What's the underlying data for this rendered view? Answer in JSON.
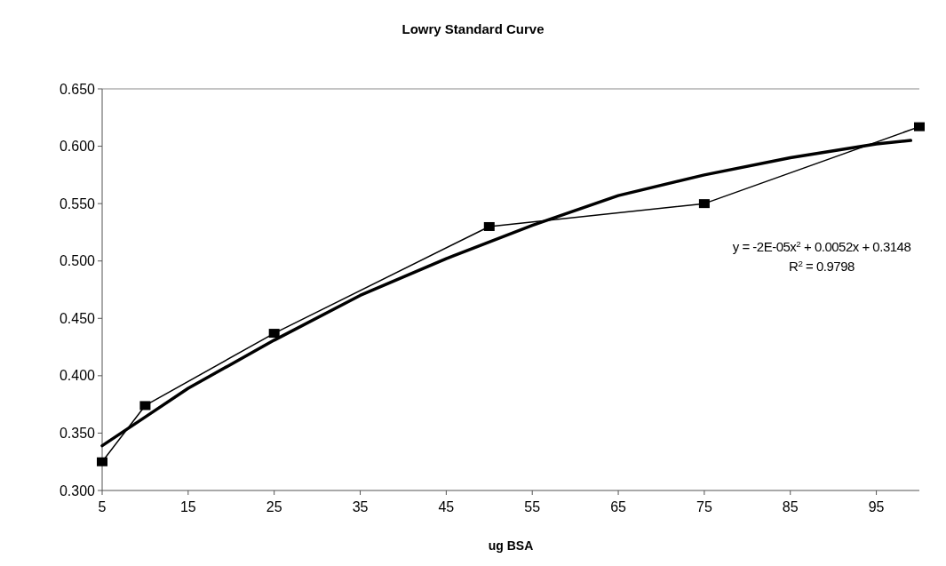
{
  "chart_data": {
    "type": "line",
    "title": "Lowry Standard Curve",
    "xlabel": "ug BSA",
    "xlim": [
      5,
      100
    ],
    "xticks": [
      5,
      15,
      25,
      35,
      45,
      55,
      65,
      75,
      85,
      95
    ],
    "ylim": [
      0.3,
      0.65
    ],
    "yticks": [
      {
        "value": 0.3,
        "label": "0.300"
      },
      {
        "value": 0.35,
        "label": "0.350"
      },
      {
        "value": 0.4,
        "label": "0.400"
      },
      {
        "value": 0.45,
        "label": "0.450"
      },
      {
        "value": 0.5,
        "label": "0.500"
      },
      {
        "value": 0.55,
        "label": "0.550"
      },
      {
        "value": 0.6,
        "label": "0.600"
      },
      {
        "value": 0.65,
        "label": "0.650"
      }
    ],
    "grid": false,
    "series": [
      {
        "color": "#000000",
        "marker": "square",
        "x": [
          5,
          10,
          25,
          50,
          75,
          100
        ],
        "values": [
          0.325,
          0.374,
          0.437,
          0.53,
          0.55,
          0.617
        ]
      },
      {
        "color": "#000000",
        "marker": "none",
        "x": [
          5,
          10,
          15,
          25,
          35,
          45,
          55,
          65,
          75,
          85,
          95,
          99
        ],
        "values": [
          0.339,
          0.364,
          0.389,
          0.431,
          0.47,
          0.502,
          0.531,
          0.557,
          0.575,
          0.59,
          0.602,
          0.605
        ]
      }
    ],
    "annotations": [
      "y = -2E-05x$^{2}$ + 0.0052x + 0.3148",
      "R$^{2}$ = 0.9798"
    ]
  }
}
